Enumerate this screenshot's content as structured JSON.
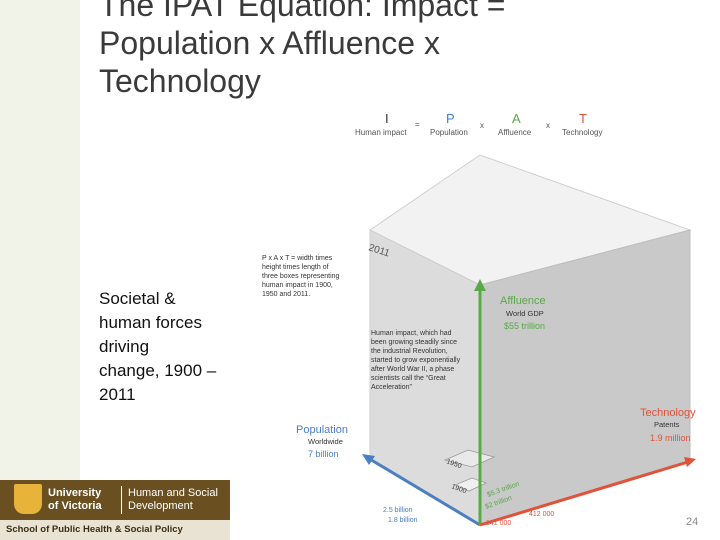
{
  "slide": {
    "title_lines": [
      "The IPAT Equation: Impact =",
      "Population x Affluence x",
      "Technology"
    ],
    "body_lines": [
      "Societal &",
      "human forces",
      "driving",
      "change, 1900 –",
      "2011"
    ],
    "page_number": "24"
  },
  "logo": {
    "crest_icon": "uvic-crest-icon",
    "university_line1": "University",
    "university_line2": "of Victoria",
    "unit_line1": "Human and Social",
    "unit_line2": "Development",
    "school": "School of Public Health & Social Policy"
  },
  "diagram": {
    "equation": {
      "i_letter": "I",
      "i_label": "Human impact",
      "eq": "=",
      "p_letter": "P",
      "p_label": "Population",
      "x1": "x",
      "a_letter": "A",
      "a_label": "Affluence",
      "x2": "x",
      "t_letter": "T",
      "t_label": "Technology"
    },
    "note_lines": [
      "P x A x T = width times",
      "height times length of",
      "three boxes representing",
      "human impact in 1900,",
      "1950 and 2011."
    ],
    "year_2011": "2011",
    "year_1950": "1950",
    "year_1900": "1900",
    "impact_lines": [
      "Human impact, which had",
      "been growing steadily since",
      "the industrial Revolution,",
      "started to grow exponentially",
      "after World War II, a phase",
      "scientists call the “Great",
      "Acceleration”"
    ],
    "affluence": {
      "title": "Affluence",
      "sub": "World GDP",
      "value": "$55 trillion"
    },
    "technology": {
      "title": "Technology",
      "sub": "Patents",
      "value": "1.9 million"
    },
    "population": {
      "title": "Population",
      "sub": "Worldwide",
      "value": "7 billion"
    },
    "bottom_labels": {
      "pop_1950": "2.5 billion",
      "pop_1900": "1.8 billion",
      "patents_1950": "412 000",
      "patents_1900": "141 000",
      "gdp_1950": "$5.3 trillion",
      "gdp_1900": "$2 trillion"
    },
    "colors": {
      "population": "#4a7fc1",
      "affluence": "#5aa84a",
      "technology": "#e0533a",
      "box_top": "#f2f2f2",
      "box_left": "#dcdcdc",
      "box_right": "#c9c9c9"
    }
  }
}
